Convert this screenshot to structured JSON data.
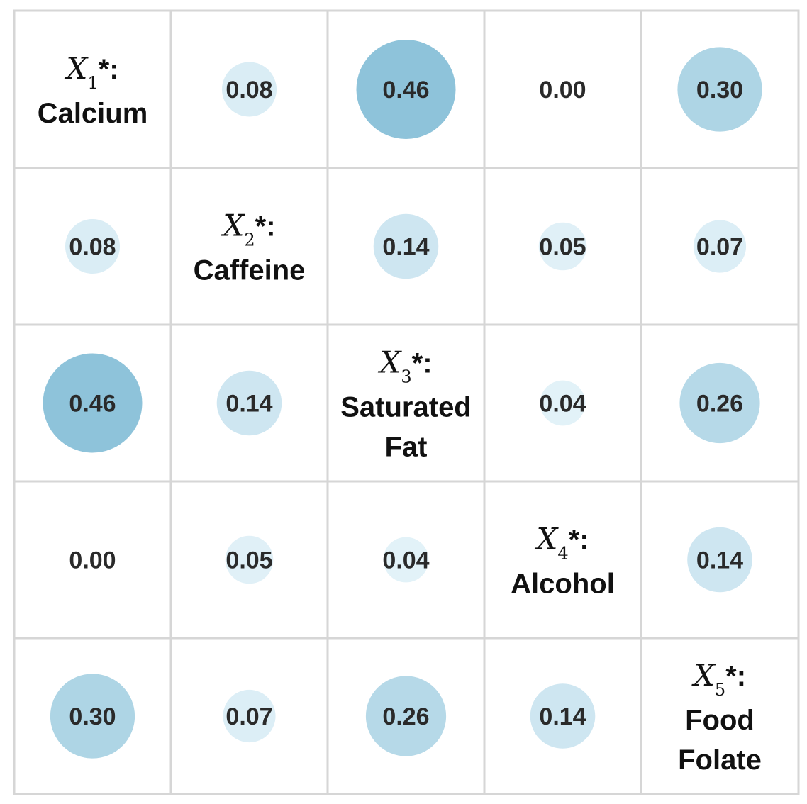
{
  "chart_data": {
    "type": "heatmap",
    "subtype": "correlation-matrix",
    "variables": [
      {
        "symbol": "X",
        "subscript": "1",
        "suffix": "*:",
        "name_lines": [
          "Calcium"
        ]
      },
      {
        "symbol": "X",
        "subscript": "2",
        "suffix": "*:",
        "name_lines": [
          "Caffeine"
        ]
      },
      {
        "symbol": "X",
        "subscript": "3",
        "suffix": "*:",
        "name_lines": [
          "Saturated",
          "Fat"
        ]
      },
      {
        "symbol": "X",
        "subscript": "4",
        "suffix": "*:",
        "name_lines": [
          "Alcohol"
        ]
      },
      {
        "symbol": "X",
        "subscript": "5",
        "suffix": "*:",
        "name_lines": [
          "Food",
          "Folate"
        ]
      }
    ],
    "matrix": [
      [
        null,
        0.08,
        0.46,
        0.0,
        0.3
      ],
      [
        0.08,
        null,
        0.14,
        0.05,
        0.07
      ],
      [
        0.46,
        0.14,
        null,
        0.04,
        0.26
      ],
      [
        0.0,
        0.05,
        0.04,
        null,
        0.14
      ],
      [
        0.3,
        0.07,
        0.26,
        0.14,
        null
      ]
    ],
    "value_labels": [
      [
        "",
        "0.08",
        "0.46",
        "0.00",
        "0.30"
      ],
      [
        "0.08",
        "",
        "0.14",
        "0.05",
        "0.07"
      ],
      [
        "0.46",
        "0.14",
        "",
        "0.04",
        "0.26"
      ],
      [
        "0.00",
        "0.05",
        "0.04",
        "",
        "0.14"
      ],
      [
        "0.30",
        "0.07",
        "0.26",
        "0.14",
        ""
      ]
    ],
    "encoding": "circle area and color intensity scale with value",
    "vmin": 0,
    "vmax": 0.46,
    "colors": {
      "low": "#eaf6fb",
      "high": "#8ec3da",
      "grid": "#d6d6d6",
      "background": "#ffffff"
    }
  }
}
